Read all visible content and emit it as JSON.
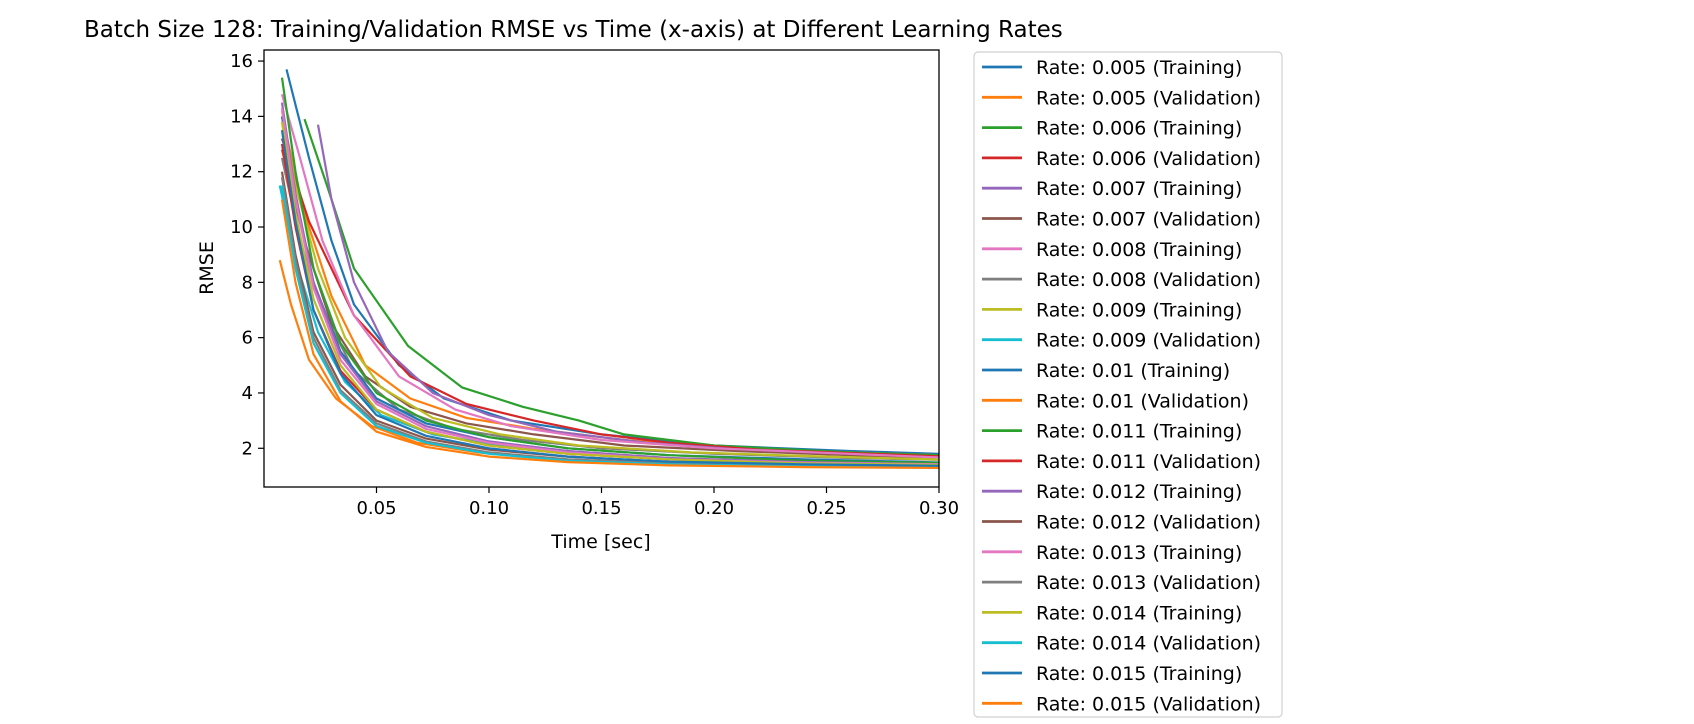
{
  "chart_data": {
    "type": "line",
    "title": "Batch Size 128: Training/Validation RMSE vs Time (x-axis) at Different Learning Rates",
    "xlabel": "Time [sec]",
    "ylabel": "RMSE",
    "xlim": [
      0.0,
      0.3
    ],
    "ylim": [
      0.6,
      16.4
    ],
    "xticks": [
      {
        "value": 0.05,
        "label": "0.05"
      },
      {
        "value": 0.1,
        "label": "0.10"
      },
      {
        "value": 0.15,
        "label": "0.15"
      },
      {
        "value": 0.2,
        "label": "0.20"
      },
      {
        "value": 0.25,
        "label": "0.25"
      },
      {
        "value": 0.3,
        "label": "0.30"
      }
    ],
    "yticks": [
      {
        "value": 2,
        "label": "2"
      },
      {
        "value": 4,
        "label": "4"
      },
      {
        "value": 6,
        "label": "6"
      },
      {
        "value": 8,
        "label": "8"
      },
      {
        "value": 10,
        "label": "10"
      },
      {
        "value": 12,
        "label": "12"
      },
      {
        "value": 14,
        "label": "14"
      },
      {
        "value": 16,
        "label": "16"
      }
    ],
    "grid": false,
    "legend_position": "outside-right",
    "series": [
      {
        "name": "Rate: 0.005 (Training)",
        "color": "#1f77b4",
        "x": [
          0.01,
          0.02,
          0.03,
          0.04,
          0.06,
          0.08,
          0.11,
          0.15,
          0.2,
          0.26,
          0.32
        ],
        "y": [
          15.7,
          12.5,
          9.5,
          7.2,
          5.0,
          3.8,
          3.0,
          2.5,
          2.1,
          1.9,
          1.75
        ]
      },
      {
        "name": "Rate: 0.005 (Validation)",
        "color": "#ff7f0e",
        "x": [
          0.008,
          0.018,
          0.03,
          0.045,
          0.065,
          0.09,
          0.12,
          0.16,
          0.21,
          0.26,
          0.32
        ],
        "y": [
          14.0,
          10.5,
          7.5,
          5.0,
          3.8,
          3.1,
          2.7,
          2.3,
          2.0,
          1.85,
          1.7
        ]
      },
      {
        "name": "Rate: 0.006 (Training)",
        "color": "#2ca02c",
        "x": [
          0.018,
          0.028,
          0.04,
          0.064,
          0.088,
          0.115,
          0.14,
          0.16,
          0.2,
          0.26,
          0.32
        ],
        "y": [
          13.9,
          11.5,
          8.5,
          5.7,
          4.2,
          3.5,
          3.0,
          2.5,
          2.1,
          1.85,
          1.7
        ]
      },
      {
        "name": "Rate: 0.006 (Validation)",
        "color": "#d62728",
        "x": [
          0.008,
          0.02,
          0.04,
          0.065,
          0.09,
          0.12,
          0.15,
          0.18,
          0.22,
          0.27,
          0.32
        ],
        "y": [
          13.2,
          10.2,
          6.8,
          4.6,
          3.6,
          3.0,
          2.5,
          2.2,
          1.95,
          1.8,
          1.65
        ]
      },
      {
        "name": "Rate: 0.007 (Training)",
        "color": "#9467bd",
        "x": [
          0.024,
          0.03,
          0.04,
          0.055,
          0.075,
          0.1,
          0.13,
          0.17,
          0.22,
          0.27,
          0.32
        ],
        "y": [
          13.7,
          11.0,
          8.0,
          5.5,
          4.0,
          3.2,
          2.6,
          2.2,
          1.9,
          1.75,
          1.6
        ]
      },
      {
        "name": "Rate: 0.007 (Validation)",
        "color": "#8c564b",
        "x": [
          0.008,
          0.018,
          0.03,
          0.045,
          0.065,
          0.09,
          0.12,
          0.16,
          0.21,
          0.26,
          0.32
        ],
        "y": [
          12.8,
          9.5,
          6.5,
          4.6,
          3.5,
          2.9,
          2.5,
          2.1,
          1.9,
          1.75,
          1.6
        ]
      },
      {
        "name": "Rate: 0.008 (Training)",
        "color": "#e377c2",
        "x": [
          0.008,
          0.016,
          0.026,
          0.04,
          0.06,
          0.085,
          0.11,
          0.15,
          0.2,
          0.26,
          0.32
        ],
        "y": [
          14.8,
          12.5,
          9.5,
          6.8,
          4.6,
          3.4,
          2.8,
          2.3,
          2.0,
          1.8,
          1.6
        ]
      },
      {
        "name": "Rate: 0.008 (Validation)",
        "color": "#7f7f7f",
        "x": [
          0.008,
          0.016,
          0.026,
          0.04,
          0.06,
          0.085,
          0.115,
          0.15,
          0.2,
          0.26,
          0.32
        ],
        "y": [
          12.5,
          9.5,
          7.0,
          4.8,
          3.4,
          2.7,
          2.3,
          2.0,
          1.8,
          1.65,
          1.55
        ]
      },
      {
        "name": "Rate: 0.009 (Training)",
        "color": "#bcbd22",
        "x": [
          0.008,
          0.014,
          0.024,
          0.036,
          0.052,
          0.075,
          0.105,
          0.14,
          0.19,
          0.25,
          0.32
        ],
        "y": [
          14.2,
          11.5,
          8.5,
          6.0,
          4.2,
          3.1,
          2.5,
          2.1,
          1.85,
          1.7,
          1.55
        ]
      },
      {
        "name": "Rate: 0.009 (Validation)",
        "color": "#17becf",
        "x": [
          0.007,
          0.014,
          0.024,
          0.036,
          0.052,
          0.075,
          0.105,
          0.14,
          0.19,
          0.23,
          0.265
        ],
        "y": [
          11.5,
          8.8,
          6.2,
          4.4,
          3.2,
          2.5,
          2.1,
          1.8,
          1.6,
          1.45,
          1.4
        ]
      },
      {
        "name": "Rate: 0.01 (Training)",
        "color": "#1f77b4",
        "x": [
          0.008,
          0.014,
          0.022,
          0.034,
          0.05,
          0.072,
          0.1,
          0.135,
          0.18,
          0.24,
          0.32
        ],
        "y": [
          14.0,
          11.0,
          8.0,
          5.5,
          3.8,
          2.9,
          2.4,
          2.0,
          1.75,
          1.6,
          1.45
        ]
      },
      {
        "name": "Rate: 0.01 (Validation)",
        "color": "#ff7f0e",
        "x": [
          0.007,
          0.012,
          0.02,
          0.032,
          0.048,
          0.068,
          0.095,
          0.13,
          0.175,
          0.23,
          0.32
        ],
        "y": [
          8.8,
          7.2,
          5.2,
          3.8,
          2.8,
          2.2,
          1.85,
          1.6,
          1.45,
          1.35,
          1.3
        ]
      },
      {
        "name": "Rate: 0.011 (Training)",
        "color": "#2ca02c",
        "x": [
          0.008,
          0.014,
          0.022,
          0.034,
          0.05,
          0.072,
          0.1,
          0.135,
          0.18,
          0.24,
          0.32
        ],
        "y": [
          15.4,
          12.0,
          8.5,
          5.8,
          4.0,
          3.0,
          2.4,
          2.0,
          1.75,
          1.55,
          1.45
        ]
      },
      {
        "name": "Rate: 0.011 (Validation)",
        "color": "#d62728",
        "x": [
          0.008,
          0.014,
          0.022,
          0.034,
          0.05,
          0.072,
          0.1,
          0.135,
          0.18,
          0.24,
          0.32
        ],
        "y": [
          13.0,
          10.0,
          7.0,
          4.8,
          3.4,
          2.6,
          2.1,
          1.8,
          1.6,
          1.45,
          1.38
        ]
      },
      {
        "name": "Rate: 0.012 (Training)",
        "color": "#9467bd",
        "x": [
          0.008,
          0.014,
          0.022,
          0.034,
          0.05,
          0.072,
          0.1,
          0.135,
          0.18,
          0.24,
          0.32
        ],
        "y": [
          14.5,
          11.2,
          8.0,
          5.4,
          3.7,
          2.8,
          2.25,
          1.9,
          1.65,
          1.5,
          1.4
        ]
      },
      {
        "name": "Rate: 0.012 (Validation)",
        "color": "#8c564b",
        "x": [
          0.008,
          0.014,
          0.022,
          0.034,
          0.05,
          0.072,
          0.1,
          0.135,
          0.18,
          0.24,
          0.32
        ],
        "y": [
          12.0,
          9.0,
          6.2,
          4.3,
          3.0,
          2.35,
          1.95,
          1.7,
          1.5,
          1.4,
          1.35
        ]
      },
      {
        "name": "Rate: 0.013 (Training)",
        "color": "#e377c2",
        "x": [
          0.008,
          0.014,
          0.022,
          0.034,
          0.05,
          0.072,
          0.1,
          0.135,
          0.18,
          0.24,
          0.32
        ],
        "y": [
          14.3,
          11.0,
          7.8,
          5.2,
          3.6,
          2.7,
          2.2,
          1.85,
          1.6,
          1.48,
          1.4
        ]
      },
      {
        "name": "Rate: 0.013 (Validation)",
        "color": "#7f7f7f",
        "x": [
          0.008,
          0.014,
          0.022,
          0.034,
          0.05,
          0.072,
          0.1,
          0.135,
          0.18,
          0.24,
          0.32
        ],
        "y": [
          11.8,
          8.8,
          6.0,
          4.1,
          2.9,
          2.25,
          1.85,
          1.6,
          1.45,
          1.38,
          1.32
        ]
      },
      {
        "name": "Rate: 0.014 (Training)",
        "color": "#bcbd22",
        "x": [
          0.008,
          0.014,
          0.022,
          0.034,
          0.05,
          0.072,
          0.1,
          0.135,
          0.18,
          0.24,
          0.32
        ],
        "y": [
          13.8,
          10.5,
          7.4,
          5.0,
          3.4,
          2.6,
          2.1,
          1.8,
          1.6,
          1.45,
          1.38
        ]
      },
      {
        "name": "Rate: 0.014 (Validation)",
        "color": "#17becf",
        "x": [
          0.008,
          0.014,
          0.022,
          0.034,
          0.05,
          0.072,
          0.1,
          0.135,
          0.18,
          0.24,
          0.32
        ],
        "y": [
          11.5,
          8.5,
          5.8,
          4.0,
          2.8,
          2.2,
          1.8,
          1.55,
          1.42,
          1.35,
          1.3
        ]
      },
      {
        "name": "Rate: 0.015 (Training)",
        "color": "#1f77b4",
        "x": [
          0.008,
          0.014,
          0.022,
          0.034,
          0.05,
          0.072,
          0.1,
          0.135,
          0.18,
          0.24,
          0.32
        ],
        "y": [
          13.5,
          10.2,
          7.0,
          4.7,
          3.2,
          2.45,
          2.0,
          1.7,
          1.52,
          1.42,
          1.35
        ]
      },
      {
        "name": "Rate: 0.015 (Validation)",
        "color": "#ff7f0e",
        "x": [
          0.008,
          0.014,
          0.022,
          0.034,
          0.05,
          0.072,
          0.1,
          0.135,
          0.18,
          0.24,
          0.32
        ],
        "y": [
          11.0,
          8.0,
          5.4,
          3.7,
          2.6,
          2.05,
          1.7,
          1.5,
          1.38,
          1.32,
          1.28
        ]
      }
    ]
  }
}
